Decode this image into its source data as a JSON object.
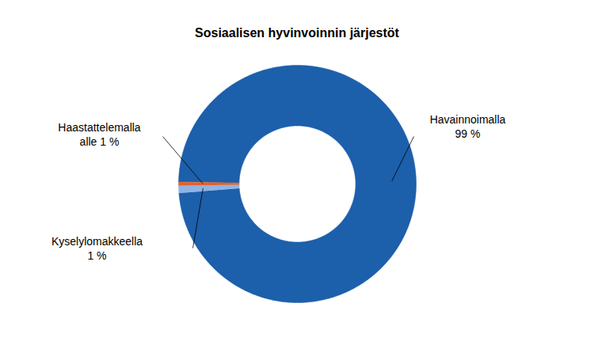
{
  "chart_data": {
    "type": "donut",
    "title": "Sosiaalisen hyvinvoinnin järjestöt",
    "categories": [
      "Havainnoimalla",
      "Kyselylomakkeella",
      "Haastattelemalla"
    ],
    "values": [
      99,
      1,
      0.5
    ],
    "value_labels": [
      "99 %",
      "1 %",
      "alle 1 %"
    ],
    "colors": [
      "#1c5fab",
      "#8fb4e3",
      "#e0622e"
    ],
    "data_labels": true
  }
}
